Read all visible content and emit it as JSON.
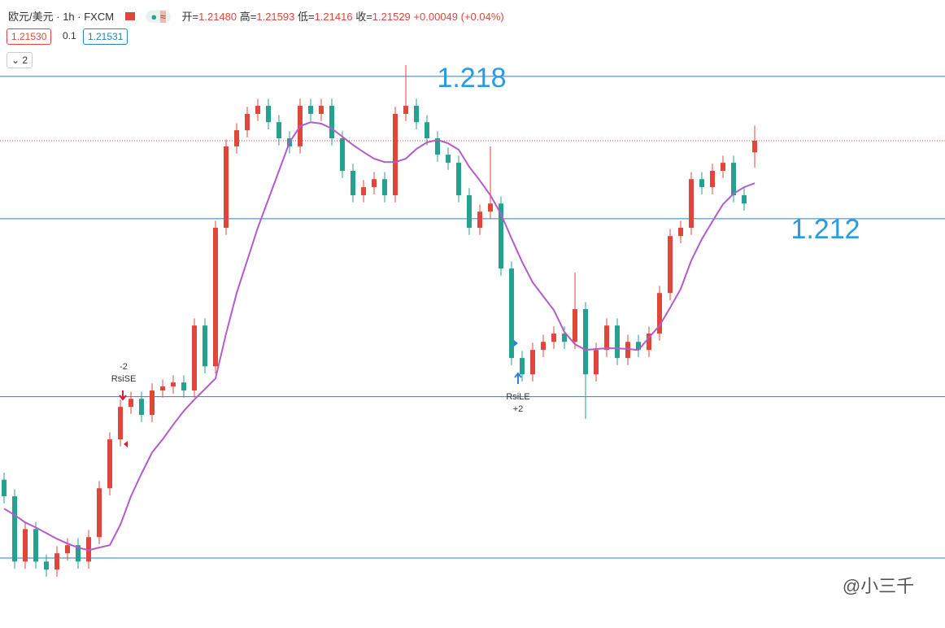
{
  "header": {
    "symbol": "欧元/美元",
    "interval": "1h",
    "exchange": "FXCM",
    "open_label": "开=",
    "open": "1.21480",
    "high_label": "高=",
    "high": "1.21593",
    "low_label": "低=",
    "low": "1.21416",
    "close_label": "收=",
    "close": "1.21529",
    "change": "+0.00049",
    "change_pct": "(+0.04%)",
    "bid": "1.21530",
    "spread": "0.1",
    "ask": "1.21531",
    "indicators": "2"
  },
  "signals": [
    {
      "qty": "-2",
      "name": "RsiSE"
    },
    {
      "name": "RsiLE",
      "qty": "+2"
    }
  ],
  "watermark": "@小三千",
  "chart_data": {
    "type": "candlestick",
    "open": [
      1.201,
      1.2003,
      1.19755,
      1.19892,
      1.19755,
      1.19721,
      1.1979,
      1.19824,
      1.19755,
      1.19858,
      1.20064,
      1.2027,
      1.20407,
      1.20441,
      1.20373,
      1.20476,
      1.20493,
      1.2051,
      1.20476,
      1.2075,
      1.20578,
      1.21162,
      1.21505,
      1.21573,
      1.21642,
      1.21676,
      1.21607,
      1.21539,
      1.21505,
      1.21676,
      1.21642,
      1.21676,
      1.21539,
      1.21402,
      1.21299,
      1.21333,
      1.21367,
      1.21299,
      1.21642,
      1.21676,
      1.21607,
      1.21539,
      1.2147,
      1.21436,
      1.21299,
      1.21162,
      1.2123,
      1.21264,
      1.2099,
      1.20613,
      1.20544,
      1.20647,
      1.20681,
      1.20716,
      1.20681,
      1.20819,
      1.20544,
      1.20647,
      1.2075,
      1.20613,
      1.20681,
      1.20647,
      1.20716,
      1.20887,
      1.21127,
      1.21162,
      1.21367,
      1.21333,
      1.21402,
      1.21436,
      1.21299,
      1.2148
    ],
    "high": [
      1.2013,
      1.2006,
      1.19922,
      1.19922,
      1.19785,
      1.1982,
      1.19854,
      1.19854,
      1.19888,
      1.20094,
      1.203,
      1.20437,
      1.20471,
      1.20471,
      1.20506,
      1.20523,
      1.2054,
      1.2054,
      1.2078,
      1.2078,
      1.21192,
      1.21535,
      1.21603,
      1.21672,
      1.21706,
      1.21706,
      1.21637,
      1.21569,
      1.21706,
      1.21706,
      1.21706,
      1.21706,
      1.21569,
      1.21432,
      1.21363,
      1.21397,
      1.21397,
      1.21672,
      1.21848,
      1.21706,
      1.21637,
      1.21569,
      1.215,
      1.21466,
      1.21329,
      1.2126,
      1.21505,
      1.21294,
      1.2102,
      1.20643,
      1.20677,
      1.20711,
      1.20746,
      1.20746,
      1.20973,
      1.20849,
      1.20677,
      1.2078,
      1.2078,
      1.20711,
      1.20711,
      1.20746,
      1.20917,
      1.21157,
      1.21192,
      1.21397,
      1.21397,
      1.21432,
      1.21466,
      1.21466,
      1.21329,
      1.21593
    ],
    "low": [
      1.2,
      1.19725,
      1.19725,
      1.19725,
      1.19691,
      1.19691,
      1.1976,
      1.19725,
      1.19725,
      1.19828,
      1.20034,
      1.2024,
      1.20377,
      1.20343,
      1.20343,
      1.20446,
      1.20463,
      1.20446,
      1.20446,
      1.20548,
      1.20548,
      1.21132,
      1.21475,
      1.21543,
      1.21612,
      1.21577,
      1.21509,
      1.21475,
      1.21475,
      1.21612,
      1.21612,
      1.21509,
      1.21372,
      1.21269,
      1.21269,
      1.21303,
      1.21269,
      1.21269,
      1.21612,
      1.21577,
      1.21509,
      1.2144,
      1.21406,
      1.21269,
      1.21132,
      1.21132,
      1.212,
      1.2096,
      1.20583,
      1.20514,
      1.20514,
      1.20617,
      1.20651,
      1.20651,
      1.20651,
      1.20356,
      1.20514,
      1.20617,
      1.20583,
      1.20583,
      1.20617,
      1.20617,
      1.20686,
      1.20857,
      1.21097,
      1.21132,
      1.21303,
      1.21303,
      1.21372,
      1.21269,
      1.21234,
      1.21416
    ],
    "close": [
      1.2003,
      1.19755,
      1.19892,
      1.19755,
      1.19721,
      1.1979,
      1.19824,
      1.19755,
      1.19858,
      1.20064,
      1.2027,
      1.20407,
      1.20441,
      1.20373,
      1.20476,
      1.20493,
      1.2051,
      1.20476,
      1.2075,
      1.20578,
      1.21162,
      1.21505,
      1.21573,
      1.21642,
      1.21676,
      1.21607,
      1.21539,
      1.21505,
      1.21676,
      1.21642,
      1.21676,
      1.21539,
      1.21402,
      1.21299,
      1.21333,
      1.21367,
      1.21299,
      1.21642,
      1.21676,
      1.21607,
      1.21539,
      1.2147,
      1.21436,
      1.21299,
      1.21162,
      1.2123,
      1.21264,
      1.2099,
      1.20613,
      1.20544,
      1.20647,
      1.20681,
      1.20716,
      1.20681,
      1.20819,
      1.20544,
      1.20647,
      1.2075,
      1.20613,
      1.20681,
      1.20647,
      1.20716,
      1.20887,
      1.21127,
      1.21162,
      1.21367,
      1.21333,
      1.21402,
      1.21436,
      1.21299,
      1.21264,
      1.21529
    ],
    "ma": [
      1.19978,
      1.19951,
      1.1992,
      1.19899,
      1.19875,
      1.19851,
      1.19831,
      1.19814,
      1.19803,
      1.19814,
      1.19824,
      1.1991,
      1.2003,
      1.20126,
      1.20215,
      1.2027,
      1.20332,
      1.2039,
      1.20438,
      1.20482,
      1.20527,
      1.20716,
      1.20887,
      1.21024,
      1.21162,
      1.21282,
      1.21402,
      1.21522,
      1.2159,
      1.21607,
      1.21601,
      1.2158,
      1.21546,
      1.21511,
      1.21481,
      1.21453,
      1.21439,
      1.21439,
      1.21453,
      1.21494,
      1.21522,
      1.21532,
      1.21518,
      1.21491,
      1.21419,
      1.21361,
      1.21299,
      1.2122,
      1.21117,
      1.21018,
      1.20932,
      1.20873,
      1.20815,
      1.20723,
      1.20671,
      1.20647,
      1.20651,
      1.20654,
      1.20654,
      1.20651,
      1.20647,
      1.20699,
      1.2075,
      1.20825,
      1.20904,
      1.21024,
      1.21114,
      1.21189,
      1.21261,
      1.21306,
      1.21333,
      1.2135
    ],
    "up_color": "#e0463c",
    "down_color": "#26a08f",
    "ma_color": "#b45ccb",
    "level_color": "#2a82c2",
    "levels": [
      {
        "value": 1.218,
        "label": "1.218"
      },
      {
        "value": 1.212,
        "label": "1.212"
      },
      {
        "value": 1.2045
      },
      {
        "value": 1.1977
      }
    ],
    "ylim": [
      1.19475,
      1.22122
    ]
  }
}
